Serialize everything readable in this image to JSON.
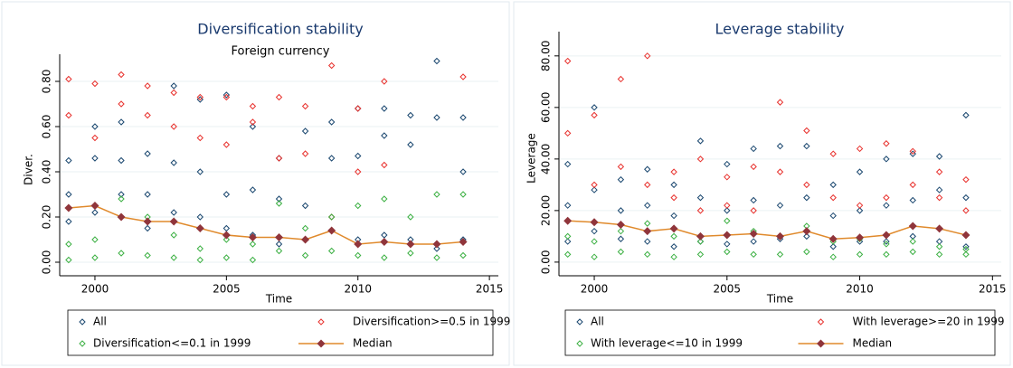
{
  "chart_data": [
    {
      "type": "scatter",
      "title": "Diversification stability",
      "subtitle": "Foreign currency",
      "x_label": "Time",
      "y_label": "Diver.",
      "xlim": [
        1998.66,
        2015.34
      ],
      "xticks": [
        2000,
        2005,
        2010,
        2015
      ],
      "ylim": [
        -0.06,
        0.88
      ],
      "yticks": [
        {
          "value": 0,
          "label": "0.00"
        },
        {
          "value": 0.2,
          "label": "0.20"
        },
        {
          "value": 0.4,
          "label": "0.40"
        },
        {
          "value": 0.6,
          "label": "0.60"
        },
        {
          "value": 0.8,
          "label": "0.80"
        }
      ],
      "grid": true,
      "series": [
        {
          "name": "All",
          "mode": "markers",
          "color": "#1a476f",
          "x": [
            1999,
            1999,
            1999,
            2000,
            2000,
            2000,
            2001,
            2001,
            2001,
            2002,
            2002,
            2002,
            2003,
            2003,
            2003,
            2004,
            2004,
            2004,
            2005,
            2005,
            2005,
            2006,
            2006,
            2006,
            2007,
            2007,
            2007,
            2008,
            2008,
            2008,
            2009,
            2009,
            2009,
            2010,
            2010,
            2010,
            2011,
            2011,
            2011,
            2012,
            2012,
            2012,
            2013,
            2013,
            2013,
            2014,
            2014,
            2014
          ],
          "values": [
            0.45,
            0.3,
            0.18,
            0.6,
            0.46,
            0.22,
            0.62,
            0.45,
            0.3,
            0.48,
            0.3,
            0.15,
            0.78,
            0.44,
            0.22,
            0.72,
            0.4,
            0.2,
            0.74,
            0.3,
            0.15,
            0.6,
            0.32,
            0.12,
            0.46,
            0.28,
            0.08,
            0.58,
            0.25,
            0.1,
            0.62,
            0.46,
            0.14,
            0.68,
            0.47,
            0.1,
            0.68,
            0.56,
            0.12,
            0.65,
            0.52,
            0.1,
            0.89,
            0.64,
            0.06,
            0.64,
            0.4,
            0.1
          ]
        },
        {
          "name": "Diversification>=0.5 in 1999",
          "mode": "markers",
          "color": "#e8322e",
          "x": [
            1999,
            1999,
            2000,
            2000,
            2001,
            2001,
            2002,
            2002,
            2003,
            2003,
            2004,
            2004,
            2005,
            2005,
            2006,
            2006,
            2007,
            2007,
            2008,
            2008,
            2009,
            2009,
            2010,
            2010,
            2011,
            2011,
            2014
          ],
          "values": [
            0.81,
            0.65,
            0.79,
            0.55,
            0.83,
            0.7,
            0.78,
            0.65,
            0.75,
            0.6,
            0.73,
            0.55,
            0.73,
            0.52,
            0.69,
            0.62,
            0.73,
            0.46,
            0.69,
            0.48,
            0.87,
            0.2,
            0.68,
            0.4,
            0.8,
            0.43,
            0.82
          ]
        },
        {
          "name": "Diversification<=0.1 in 1999",
          "mode": "markers",
          "color": "#3cb043",
          "x": [
            1999,
            1999,
            2000,
            2000,
            2001,
            2001,
            2002,
            2002,
            2003,
            2003,
            2004,
            2004,
            2005,
            2005,
            2006,
            2006,
            2007,
            2007,
            2008,
            2008,
            2009,
            2009,
            2010,
            2010,
            2011,
            2011,
            2012,
            2012,
            2013,
            2013,
            2014,
            2014
          ],
          "values": [
            0.08,
            0.01,
            0.1,
            0.02,
            0.28,
            0.04,
            0.2,
            0.03,
            0.12,
            0.02,
            0.06,
            0.01,
            0.1,
            0.02,
            0.08,
            0.01,
            0.26,
            0.05,
            0.15,
            0.03,
            0.2,
            0.05,
            0.25,
            0.03,
            0.28,
            0.02,
            0.2,
            0.04,
            0.3,
            0.02,
            0.3,
            0.03
          ]
        },
        {
          "name": "Median",
          "mode": "line",
          "color": "#e08a2c",
          "marker_color": "#90353b",
          "x": [
            1999,
            2000,
            2001,
            2002,
            2003,
            2004,
            2005,
            2006,
            2007,
            2008,
            2009,
            2010,
            2011,
            2012,
            2013,
            2014
          ],
          "values": [
            0.24,
            0.25,
            0.2,
            0.18,
            0.18,
            0.15,
            0.12,
            0.11,
            0.11,
            0.1,
            0.14,
            0.08,
            0.09,
            0.08,
            0.08,
            0.09
          ]
        }
      ]
    },
    {
      "type": "scatter",
      "title": "Leverage stability",
      "x_label": "Time",
      "y_label": "Leverage",
      "xlim": [
        1998.67,
        2015.33
      ],
      "xticks": [
        2000,
        2005,
        2010,
        2015
      ],
      "ylim": [
        -5.3,
        85.9
      ],
      "yticks": [
        {
          "value": 0,
          "label": "0.00"
        },
        {
          "value": 20,
          "label": "20.00"
        },
        {
          "value": 40,
          "label": "40.00"
        },
        {
          "value": 60,
          "label": "60.00"
        },
        {
          "value": 80,
          "label": "80.00"
        }
      ],
      "grid": true,
      "series": [
        {
          "name": "All",
          "mode": "markers",
          "color": "#1a476f",
          "x": [
            1999,
            1999,
            1999,
            2000,
            2000,
            2000,
            2001,
            2001,
            2001,
            2002,
            2002,
            2002,
            2003,
            2003,
            2003,
            2004,
            2004,
            2004,
            2005,
            2005,
            2005,
            2006,
            2006,
            2006,
            2007,
            2007,
            2007,
            2008,
            2008,
            2008,
            2009,
            2009,
            2009,
            2010,
            2010,
            2010,
            2011,
            2011,
            2011,
            2012,
            2012,
            2012,
            2013,
            2013,
            2013,
            2014,
            2014,
            2014
          ],
          "values": [
            38,
            22,
            8,
            60,
            28,
            12,
            32,
            20,
            9,
            36,
            22,
            8,
            30,
            18,
            6,
            47,
            25,
            8,
            38,
            20,
            7,
            44,
            24,
            8,
            45,
            22,
            9,
            45,
            25,
            10,
            30,
            18,
            6,
            35,
            20,
            8,
            40,
            22,
            8,
            42,
            24,
            10,
            41,
            28,
            8,
            57,
            25,
            6
          ]
        },
        {
          "name": "With leverage>=20 in 1999",
          "mode": "markers",
          "color": "#e8322e",
          "x": [
            1999,
            1999,
            2000,
            2000,
            2001,
            2001,
            2002,
            2002,
            2003,
            2003,
            2004,
            2004,
            2005,
            2005,
            2006,
            2006,
            2007,
            2007,
            2008,
            2008,
            2009,
            2009,
            2010,
            2010,
            2011,
            2011,
            2012,
            2012,
            2013,
            2013,
            2014,
            2014
          ],
          "values": [
            78,
            50,
            57,
            30,
            71,
            37,
            80,
            30,
            35,
            25,
            40,
            20,
            33,
            22,
            37,
            20,
            62,
            35,
            51,
            30,
            42,
            25,
            44,
            22,
            46,
            25,
            43,
            30,
            35,
            25,
            32,
            20
          ]
        },
        {
          "name": "With leverage<=10 in 1999",
          "mode": "markers",
          "color": "#3cb043",
          "x": [
            1999,
            1999,
            2000,
            2000,
            2001,
            2001,
            2002,
            2002,
            2003,
            2003,
            2004,
            2004,
            2005,
            2005,
            2006,
            2006,
            2007,
            2007,
            2008,
            2008,
            2009,
            2009,
            2010,
            2010,
            2011,
            2011,
            2012,
            2012,
            2013,
            2013,
            2014,
            2014
          ],
          "values": [
            10,
            3,
            8,
            2,
            12,
            4,
            15,
            3,
            10,
            2,
            8,
            3,
            16,
            4,
            12,
            3,
            10,
            3,
            14,
            4,
            8,
            2,
            9,
            3,
            7,
            3,
            8,
            4,
            6,
            3,
            5,
            3
          ]
        },
        {
          "name": "Median",
          "mode": "line",
          "color": "#e08a2c",
          "marker_color": "#90353b",
          "x": [
            1999,
            2000,
            2001,
            2002,
            2003,
            2004,
            2005,
            2006,
            2007,
            2008,
            2009,
            2010,
            2011,
            2012,
            2013,
            2014
          ],
          "values": [
            16,
            15.5,
            14.5,
            12,
            13,
            10,
            10.5,
            11,
            10,
            12,
            9,
            9.5,
            10.5,
            14,
            13,
            10.5
          ]
        }
      ]
    }
  ]
}
